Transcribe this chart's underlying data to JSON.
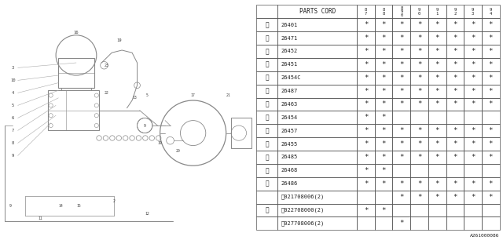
{
  "parts_cord_header": "PARTS CORD",
  "yr_labels": [
    "8\n7",
    "8\n8",
    "8\n9\n0",
    "9\n0",
    "9\n1",
    "9\n2",
    "9\n3",
    "9\n4"
  ],
  "row_data": [
    {
      "num": "1",
      "circled": true,
      "part": "26401",
      "marks": [
        1,
        1,
        1,
        1,
        1,
        1,
        1,
        1
      ]
    },
    {
      "num": "2",
      "circled": true,
      "part": "26471",
      "marks": [
        1,
        1,
        1,
        1,
        1,
        1,
        1,
        1
      ]
    },
    {
      "num": "3",
      "circled": true,
      "part": "26452",
      "marks": [
        1,
        1,
        1,
        1,
        1,
        1,
        1,
        1
      ]
    },
    {
      "num": "4",
      "circled": true,
      "part": "26451",
      "marks": [
        1,
        1,
        1,
        1,
        1,
        1,
        1,
        1
      ]
    },
    {
      "num": "5",
      "circled": true,
      "part": "26454C",
      "marks": [
        1,
        1,
        1,
        1,
        1,
        1,
        1,
        1
      ]
    },
    {
      "num": "6",
      "circled": true,
      "part": "26487",
      "marks": [
        1,
        1,
        1,
        1,
        1,
        1,
        1,
        1
      ]
    },
    {
      "num": "7",
      "circled": true,
      "part": "26463",
      "marks": [
        1,
        1,
        1,
        1,
        1,
        1,
        1,
        1
      ]
    },
    {
      "num": "8",
      "circled": true,
      "part": "26454",
      "marks": [
        1,
        1,
        0,
        0,
        0,
        0,
        0,
        0
      ]
    },
    {
      "num": "9",
      "circled": true,
      "part": "26457",
      "marks": [
        1,
        1,
        1,
        1,
        1,
        1,
        1,
        1
      ]
    },
    {
      "num": "10",
      "circled": true,
      "part": "26455",
      "marks": [
        1,
        1,
        1,
        1,
        1,
        1,
        1,
        1
      ]
    },
    {
      "num": "11",
      "circled": true,
      "part": "26485",
      "marks": [
        1,
        1,
        1,
        1,
        1,
        1,
        1,
        1
      ]
    },
    {
      "num": "12",
      "circled": true,
      "part": "26468",
      "marks": [
        1,
        1,
        0,
        0,
        0,
        0,
        0,
        0
      ]
    },
    {
      "num": "13",
      "circled": true,
      "part": "26486",
      "marks": [
        1,
        1,
        1,
        1,
        1,
        1,
        1,
        1
      ]
    },
    {
      "num": "",
      "circled": false,
      "part": "ⓝ021708006(2)",
      "marks": [
        0,
        0,
        1,
        1,
        1,
        1,
        1,
        1
      ]
    },
    {
      "num": "14",
      "circled": true,
      "part": "ⓝ022708000(2)",
      "marks": [
        1,
        1,
        0,
        0,
        0,
        0,
        0,
        0
      ]
    },
    {
      "num": "",
      "circled": false,
      "part": "ⓝ027708006(2)",
      "marks": [
        0,
        0,
        1,
        0,
        0,
        0,
        0,
        0
      ]
    }
  ],
  "note_code": "A261000086",
  "bg_color": "#ffffff",
  "table_border_color": "#555555",
  "text_color": "#222222",
  "diag_color": "#888888",
  "diag_label_color": "#444444"
}
